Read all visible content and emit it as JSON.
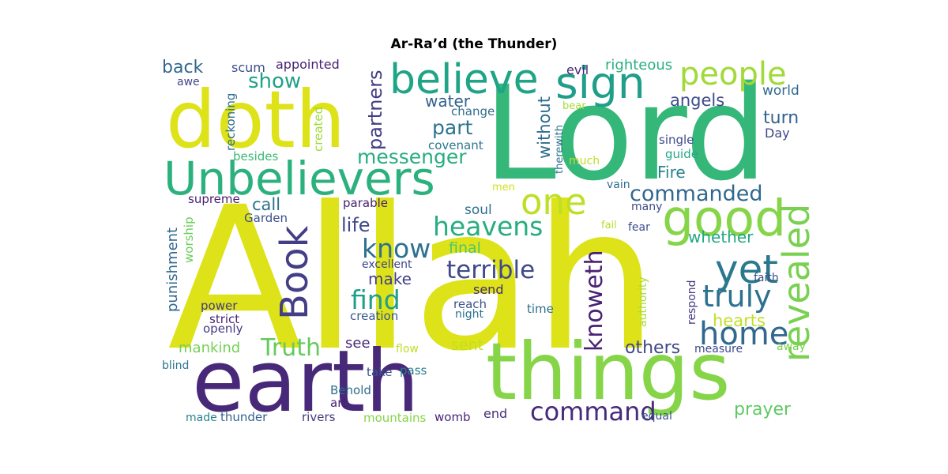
{
  "title": "Ar-Ra’d (the Thunder)",
  "words": [
    {
      "text": "Allah",
      "color": "#dde318",
      "rotated": false
    },
    {
      "text": "Lord",
      "color": "#35b779",
      "rotated": false
    },
    {
      "text": "earth",
      "color": "#482979",
      "rotated": false
    },
    {
      "text": "things",
      "color": "#86d549",
      "rotated": false
    },
    {
      "text": "doth",
      "color": "#dde318",
      "rotated": false
    },
    {
      "text": "Unbelievers",
      "color": "#2cb17e",
      "rotated": false
    },
    {
      "text": "believe",
      "color": "#20a486",
      "rotated": false
    },
    {
      "text": "sign",
      "color": "#1f9e89",
      "rotated": false
    },
    {
      "text": "people",
      "color": "#a0da39",
      "rotated": false
    },
    {
      "text": "good",
      "color": "#86d549",
      "rotated": false
    },
    {
      "text": "one",
      "color": "#bddf26",
      "rotated": false
    },
    {
      "text": "revealed",
      "color": "#7ad151",
      "rotated": true
    },
    {
      "text": "yet",
      "color": "#2a788e",
      "rotated": false
    },
    {
      "text": "Book",
      "color": "#433e85",
      "rotated": true
    },
    {
      "text": "home",
      "color": "#31688e",
      "rotated": false
    },
    {
      "text": "truly",
      "color": "#2c728e",
      "rotated": false
    },
    {
      "text": "command",
      "color": "#472a7a",
      "rotated": false
    },
    {
      "text": "commanded",
      "color": "#31688e",
      "rotated": false
    },
    {
      "text": "heavens",
      "color": "#26ad81",
      "rotated": false
    },
    {
      "text": "know",
      "color": "#2c728e",
      "rotated": false
    },
    {
      "text": "find",
      "color": "#1f9e89",
      "rotated": false
    },
    {
      "text": "terrible",
      "color": "#3e4a89",
      "rotated": false
    },
    {
      "text": "knoweth",
      "color": "#482173",
      "rotated": true
    },
    {
      "text": "Truth",
      "color": "#65cb5e",
      "rotated": false
    },
    {
      "text": "show",
      "color": "#1fa287",
      "rotated": false
    },
    {
      "text": "messenger",
      "color": "#27ad81",
      "rotated": false
    },
    {
      "text": "partners",
      "color": "#433e85",
      "rotated": true
    },
    {
      "text": "part",
      "color": "#2b748e",
      "rotated": false
    },
    {
      "text": "angels",
      "color": "#3e4c8a",
      "rotated": false
    },
    {
      "text": "others",
      "color": "#3f4788",
      "rotated": false
    },
    {
      "text": "prayer",
      "color": "#5ec962",
      "rotated": false
    },
    {
      "text": "hearts",
      "color": "#c2df23",
      "rotated": false
    },
    {
      "text": "without",
      "color": "#2f6c8e",
      "rotated": true
    },
    {
      "text": "life",
      "color": "#3e4989",
      "rotated": false
    },
    {
      "text": "back",
      "color": "#31688e",
      "rotated": false
    },
    {
      "text": "water",
      "color": "#33638d",
      "rotated": false
    },
    {
      "text": "whether",
      "color": "#22a785",
      "rotated": false
    },
    {
      "text": "turn",
      "color": "#33638d",
      "rotated": false
    },
    {
      "text": "Fire",
      "color": "#25858e",
      "rotated": false
    },
    {
      "text": "mankind",
      "color": "#75d054",
      "rotated": false
    },
    {
      "text": "make",
      "color": "#424186",
      "rotated": false
    },
    {
      "text": "call",
      "color": "#2d718e",
      "rotated": false
    },
    {
      "text": "punishment",
      "color": "#31688e",
      "rotated": true
    },
    {
      "text": "final",
      "color": "#52c569",
      "rotated": false
    },
    {
      "text": "sent",
      "color": "#c2df23",
      "rotated": false
    },
    {
      "text": "righteous",
      "color": "#29af7f",
      "rotated": false
    },
    {
      "text": "world",
      "color": "#31688e",
      "rotated": false
    },
    {
      "text": "see",
      "color": "#482878",
      "rotated": false
    },
    {
      "text": "soul",
      "color": "#2d708e",
      "rotated": false
    },
    {
      "text": "Day",
      "color": "#404688",
      "rotated": false
    },
    {
      "text": "appointed",
      "color": "#482173",
      "rotated": false
    },
    {
      "text": "scum",
      "color": "#3d4e8a",
      "rotated": false
    },
    {
      "text": "awe",
      "color": "#404588",
      "rotated": false
    },
    {
      "text": "evil",
      "color": "#482475",
      "rotated": false
    },
    {
      "text": "bear",
      "color": "#a8db34",
      "rotated": false
    },
    {
      "text": "change",
      "color": "#2e6e8e",
      "rotated": false
    },
    {
      "text": "reckoning",
      "color": "#2e6f8e",
      "rotated": true
    },
    {
      "text": "created",
      "color": "#a0da39",
      "rotated": true
    },
    {
      "text": "covenant",
      "color": "#2a788e",
      "rotated": false
    },
    {
      "text": "much",
      "color": "#bddf26",
      "rotated": false
    },
    {
      "text": "therewith",
      "color": "#2d718e",
      "rotated": true
    },
    {
      "text": "single",
      "color": "#3e4c8a",
      "rotated": false
    },
    {
      "text": "guide",
      "color": "#22a785",
      "rotated": false
    },
    {
      "text": "besides",
      "color": "#3aba76",
      "rotated": false
    },
    {
      "text": "vain",
      "color": "#2e6e8e",
      "rotated": false
    },
    {
      "text": "supreme",
      "color": "#482173",
      "rotated": false
    },
    {
      "text": "men",
      "color": "#d0e11c",
      "rotated": false
    },
    {
      "text": "parable",
      "color": "#482071",
      "rotated": false
    },
    {
      "text": "many",
      "color": "#3e4a89",
      "rotated": false
    },
    {
      "text": "Garden",
      "color": "#3c508b",
      "rotated": false
    },
    {
      "text": "fail",
      "color": "#b5de2b",
      "rotated": false
    },
    {
      "text": "fear",
      "color": "#3e4c8a",
      "rotated": false
    },
    {
      "text": "worship",
      "color": "#6ccd5a",
      "rotated": true
    },
    {
      "text": "excellent",
      "color": "#3f4788",
      "rotated": false
    },
    {
      "text": "authority",
      "color": "#a8db34",
      "rotated": true
    },
    {
      "text": "respond",
      "color": "#443a83",
      "rotated": true
    },
    {
      "text": "faith",
      "color": "#3c4f8a",
      "rotated": false
    },
    {
      "text": "send",
      "color": "#472c7a",
      "rotated": false
    },
    {
      "text": "power",
      "color": "#453882",
      "rotated": false
    },
    {
      "text": "reach",
      "color": "#3b528b",
      "rotated": false
    },
    {
      "text": "time",
      "color": "#2e6e8e",
      "rotated": false
    },
    {
      "text": "strict",
      "color": "#482878",
      "rotated": false
    },
    {
      "text": "night",
      "color": "#2c728e",
      "rotated": false
    },
    {
      "text": "creation",
      "color": "#38588c",
      "rotated": false
    },
    {
      "text": "openly",
      "color": "#443a83",
      "rotated": false
    },
    {
      "text": "measure",
      "color": "#3e4989",
      "rotated": false
    },
    {
      "text": "away",
      "color": "#7ad151",
      "rotated": false
    },
    {
      "text": "blind",
      "color": "#2c738e",
      "rotated": false
    },
    {
      "text": "flow",
      "color": "#bddf26",
      "rotated": false
    },
    {
      "text": "take",
      "color": "#3b528b",
      "rotated": false
    },
    {
      "text": "pass",
      "color": "#277f8e",
      "rotated": false
    },
    {
      "text": "Behold",
      "color": "#2f6c8e",
      "rotated": false
    },
    {
      "text": "art",
      "color": "#481f70",
      "rotated": false
    },
    {
      "text": "end",
      "color": "#472d7b",
      "rotated": false
    },
    {
      "text": "made",
      "color": "#26828e",
      "rotated": false
    },
    {
      "text": "thunder",
      "color": "#33638d",
      "rotated": false
    },
    {
      "text": "rivers",
      "color": "#453882",
      "rotated": false
    },
    {
      "text": "mountains",
      "color": "#86d549",
      "rotated": false
    },
    {
      "text": "womb",
      "color": "#482576",
      "rotated": false
    },
    {
      "text": "equal",
      "color": "#3b528b",
      "rotated": false
    }
  ]
}
